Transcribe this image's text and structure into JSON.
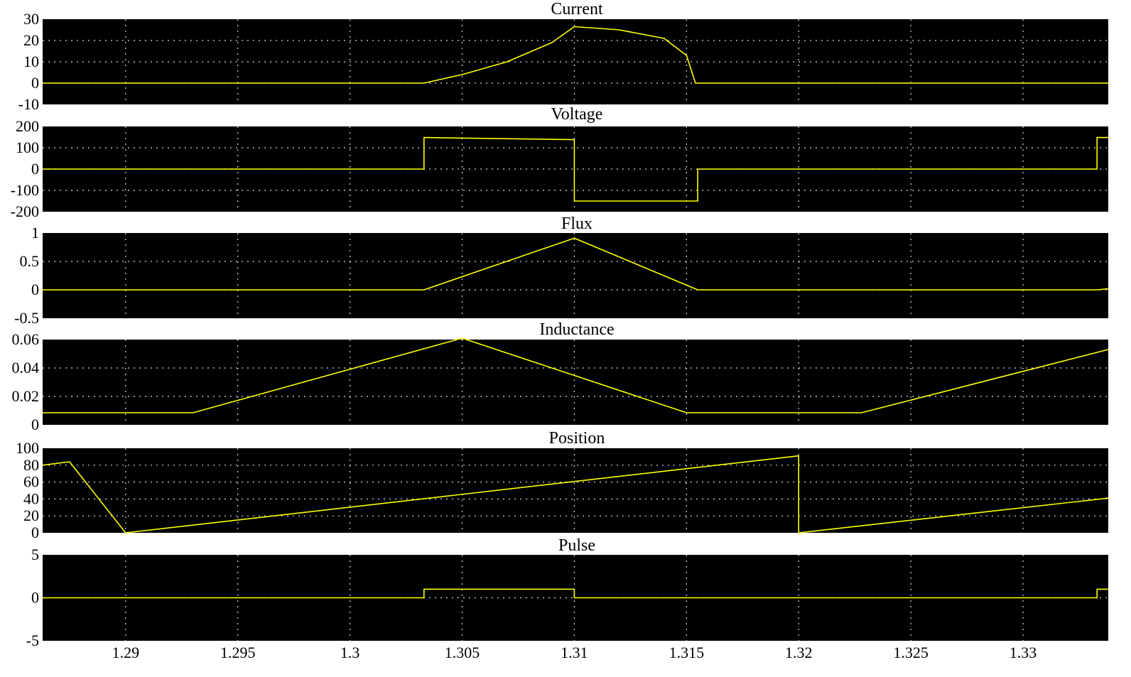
{
  "chart_data": {
    "type": "line",
    "xlim": [
      1.2863,
      1.3338
    ],
    "x_ticks": [
      "1.29",
      "1.295",
      "1.3",
      "1.305",
      "1.31",
      "1.315",
      "1.32",
      "1.325",
      "1.33"
    ],
    "x_tick_values": [
      1.29,
      1.295,
      1.3,
      1.305,
      1.31,
      1.315,
      1.32,
      1.325,
      1.33
    ],
    "colors": {
      "trace": "#ffff00",
      "background": "#000000",
      "grid": "#ffffff"
    },
    "panels": [
      {
        "id": "current",
        "title": "Current",
        "ylim": [
          -10,
          30
        ],
        "y_ticks": [
          "30",
          "20",
          "10",
          "0",
          "-10"
        ],
        "y_tick_values": [
          30,
          20,
          10,
          0,
          -10
        ],
        "x": [
          1.2863,
          1.3033,
          1.305,
          1.307,
          1.309,
          1.31,
          1.312,
          1.314,
          1.315,
          1.3154,
          1.3338
        ],
        "y": [
          0,
          0,
          4,
          10,
          19,
          26.5,
          25,
          21,
          13,
          0,
          0
        ]
      },
      {
        "id": "voltage",
        "title": "Voltage",
        "ylim": [
          -200,
          200
        ],
        "y_ticks": [
          "200",
          "100",
          "0",
          "-100",
          "-200"
        ],
        "y_tick_values": [
          200,
          100,
          0,
          -100,
          -200
        ],
        "x": [
          1.2863,
          1.3033,
          1.3033,
          1.31,
          1.31,
          1.3155,
          1.3155,
          1.3333,
          1.3333,
          1.3338
        ],
        "y": [
          0,
          0,
          148,
          138,
          -150,
          -150,
          0,
          0,
          148,
          148
        ]
      },
      {
        "id": "flux",
        "title": "Flux",
        "ylim": [
          -0.5,
          1
        ],
        "y_ticks": [
          "1",
          "0.5",
          "0",
          "-0.5"
        ],
        "y_tick_values": [
          1,
          0.5,
          0,
          -0.5
        ],
        "x": [
          1.2863,
          1.3033,
          1.31,
          1.3155,
          1.3333,
          1.3338
        ],
        "y": [
          0,
          0,
          0.91,
          0,
          0,
          0.02
        ]
      },
      {
        "id": "inductance",
        "title": "Inductance",
        "ylim": [
          0,
          0.06
        ],
        "y_ticks": [
          "0.06",
          "0.04",
          "0.02",
          "0"
        ],
        "y_tick_values": [
          0.06,
          0.04,
          0.02,
          0
        ],
        "x": [
          1.2863,
          1.293,
          1.305,
          1.315,
          1.3228,
          1.3338
        ],
        "y": [
          0.0085,
          0.0085,
          0.061,
          0.0085,
          0.0085,
          0.053
        ]
      },
      {
        "id": "position",
        "title": "Position",
        "ylim": [
          0,
          100
        ],
        "y_ticks": [
          "100",
          "80",
          "60",
          "40",
          "20",
          "0"
        ],
        "y_tick_values": [
          100,
          80,
          60,
          40,
          20,
          0
        ],
        "x": [
          1.2863,
          1.2875,
          1.29,
          1.32,
          1.32,
          1.3338
        ],
        "y": [
          80,
          84,
          0,
          91,
          0,
          41
        ]
      },
      {
        "id": "pulse",
        "title": "Pulse",
        "ylim": [
          -5,
          5
        ],
        "y_ticks": [
          "5",
          "0",
          "-5"
        ],
        "y_tick_values": [
          5,
          0,
          -5
        ],
        "x": [
          1.2863,
          1.3033,
          1.3033,
          1.31,
          1.31,
          1.3333,
          1.3333,
          1.3338
        ],
        "y": [
          0,
          0,
          1,
          1,
          0,
          0,
          1,
          1
        ]
      }
    ]
  }
}
